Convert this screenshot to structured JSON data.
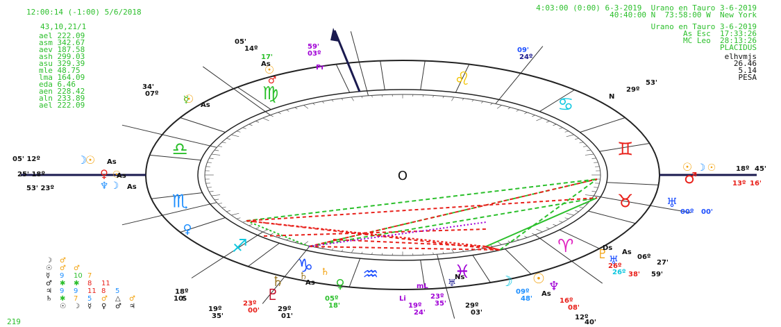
{
  "header": {
    "left": "12:00:14 (-1:00) 5/6/2018",
    "right_line1": "4:03:00 (0:00) 6-3-2019  Urano en Tauro 3-6-2019",
    "right_line2": "40:40:00 N  73:58:00 W  New York"
  },
  "left_panel": {
    "code": "43,10,21/1",
    "rows": [
      "ael 222.09",
      "asm 342.67",
      "aev 187.58",
      "ash 299.03",
      "asu 329.39",
      "mle 48.75",
      "lma 164.09",
      "eda 6.46",
      "aen 228.42",
      "aln 233.89",
      "ael 222.09"
    ]
  },
  "right_panel": {
    "title": "Urano en Tauro 3-6-2019",
    "asc": "As Esc  17:33:26",
    "mc": "MC Leo  28:13:26",
    "system": "PLACIDUS",
    "code": "elhvmjs",
    "val1": "26.46",
    "val2": "5.14",
    "val3": "PESA"
  },
  "footer": {
    "number": "219"
  },
  "center_symbol": "O",
  "colors": {
    "green": "#2bbf2b",
    "red": "#e8201a",
    "orange": "#f2a10c",
    "blue": "#1e8fff",
    "purple": "#a000d6",
    "cyan": "#10c8e0",
    "darkblue": "#1a1a8f"
  },
  "signs": [
    {
      "glyph": "♌",
      "color": "#f2c400"
    },
    {
      "glyph": "♋",
      "color": "#10c8e0"
    },
    {
      "glyph": "♊",
      "color": "#e8201a"
    },
    {
      "glyph": "♉",
      "color": "#e8201a"
    },
    {
      "glyph": "♈",
      "color": "#e020c0"
    },
    {
      "glyph": "♓",
      "color": "#a000d6"
    },
    {
      "glyph": "♒",
      "color": "#1e50ff"
    },
    {
      "glyph": "♑",
      "color": "#1e50ff"
    },
    {
      "glyph": "♐",
      "color": "#10c8e0"
    },
    {
      "glyph": "♏",
      "color": "#1e8fff"
    },
    {
      "glyph": "♎",
      "color": "#2bbf2b"
    },
    {
      "glyph": "♍",
      "color": "#2bbf2b"
    }
  ],
  "labels": [
    {
      "t": "05'",
      "c": "#111"
    },
    {
      "t": "14º",
      "c": "#111"
    },
    {
      "t": "17'",
      "c": "#2bbf2b"
    },
    {
      "t": "As",
      "c": "#111"
    },
    {
      "t": "59'",
      "c": "#a000d6"
    },
    {
      "t": "03º",
      "c": "#a000d6"
    },
    {
      "t": "Pr",
      "c": "#a000d6"
    },
    {
      "t": "09'",
      "c": "#1e50ff"
    },
    {
      "t": "24º",
      "c": "#1a1a8f"
    },
    {
      "t": "53'",
      "c": "#111"
    },
    {
      "t": "N",
      "c": "#111"
    },
    {
      "t": "29º",
      "c": "#111"
    },
    {
      "t": "34'",
      "c": "#111"
    },
    {
      "t": "07º",
      "c": "#111"
    },
    {
      "t": "As",
      "c": "#111"
    },
    {
      "t": "05' 12º",
      "c": "#111"
    },
    {
      "t": "25' 18º",
      "c": "#111"
    },
    {
      "t": "53' 23º",
      "c": "#111"
    },
    {
      "t": "As",
      "c": "#111"
    },
    {
      "t": "As",
      "c": "#111"
    },
    {
      "t": "As",
      "c": "#111"
    },
    {
      "t": "18º",
      "c": "#111"
    },
    {
      "t": "45'",
      "c": "#111"
    },
    {
      "t": "13º",
      "c": "#e8201a"
    },
    {
      "t": "16'",
      "c": "#e8201a"
    },
    {
      "t": "00º",
      "c": "#1e50ff"
    },
    {
      "t": "00'",
      "c": "#1e50ff"
    },
    {
      "t": "Ds",
      "c": "#111"
    },
    {
      "t": "As",
      "c": "#111"
    },
    {
      "t": "06º",
      "c": "#111"
    },
    {
      "t": "27'",
      "c": "#111"
    },
    {
      "t": "26º",
      "c": "#e8201a"
    },
    {
      "t": "38'",
      "c": "#e8201a"
    },
    {
      "t": "59'",
      "c": "#111"
    },
    {
      "t": "26º",
      "c": "#10c8e0"
    },
    {
      "t": "09º",
      "c": "#1e8fff"
    },
    {
      "t": "48'",
      "c": "#1e8fff"
    },
    {
      "t": "As",
      "c": "#111"
    },
    {
      "t": "16º",
      "c": "#e8201a"
    },
    {
      "t": "08'",
      "c": "#e8201a"
    },
    {
      "t": "12º",
      "c": "#111"
    },
    {
      "t": "40'",
      "c": "#111"
    },
    {
      "t": "19º",
      "c": "#a000d6"
    },
    {
      "t": "24'",
      "c": "#a000d6"
    },
    {
      "t": "23º",
      "c": "#a000d6"
    },
    {
      "t": "35'",
      "c": "#a000d6"
    },
    {
      "t": "29º",
      "c": "#111"
    },
    {
      "t": "03'",
      "c": "#111"
    },
    {
      "t": "mL",
      "c": "#a000d6"
    },
    {
      "t": "Li",
      "c": "#a000d6"
    },
    {
      "t": "05º",
      "c": "#2bbf2b"
    },
    {
      "t": "18'",
      "c": "#2bbf2b"
    },
    {
      "t": "As",
      "c": "#111"
    },
    {
      "t": "29º",
      "c": "#111"
    },
    {
      "t": "01'",
      "c": "#111"
    },
    {
      "t": "19º",
      "c": "#111"
    },
    {
      "t": "35'",
      "c": "#111"
    },
    {
      "t": "23º",
      "c": "#e8201a"
    },
    {
      "t": "00'",
      "c": "#e8201a"
    },
    {
      "t": "18º",
      "c": "#111"
    },
    {
      "t": "10'",
      "c": "#111"
    },
    {
      "t": "S",
      "c": "#111"
    },
    {
      "t": "Ns",
      "c": "#111"
    }
  ],
  "aspect_grid": {
    "rows": [
      [
        {
          "t": "☽",
          "c": "#111"
        },
        {
          "t": "♂",
          "c": "#f2a10c"
        }
      ],
      [
        {
          "t": "☉",
          "c": "#111"
        },
        {
          "t": "♂",
          "c": "#f2a10c"
        },
        {
          "t": "♂",
          "c": "#f2a10c"
        }
      ],
      [
        {
          "t": "☿",
          "c": "#111"
        },
        {
          "t": "9",
          "c": "#1e8fff"
        },
        {
          "t": "10",
          "c": "#2bbf2b"
        },
        {
          "t": "7",
          "c": "#f2a10c"
        }
      ],
      [
        {
          "t": "♂",
          "c": "#111"
        },
        {
          "t": "✱",
          "c": "#2bbf2b"
        },
        {
          "t": "✱",
          "c": "#2bbf2b"
        },
        {
          "t": "8",
          "c": "#e8201a"
        },
        {
          "t": "11",
          "c": "#e8201a"
        }
      ],
      [
        {
          "t": "♃",
          "c": "#111"
        },
        {
          "t": "9",
          "c": "#1e8fff"
        },
        {
          "t": "9",
          "c": "#1e8fff"
        },
        {
          "t": "11",
          "c": "#e8201a"
        },
        {
          "t": "8",
          "c": "#e8201a"
        },
        {
          "t": "5",
          "c": "#1e8fff"
        }
      ],
      [
        {
          "t": "♄",
          "c": "#111"
        },
        {
          "t": "✱",
          "c": "#2bbf2b"
        },
        {
          "t": "7",
          "c": "#f2a10c"
        },
        {
          "t": "5",
          "c": "#1e8fff"
        },
        {
          "t": "♂",
          "c": "#f2a10c"
        },
        {
          "t": "△",
          "c": "#111"
        },
        {
          "t": "♂",
          "c": "#f2a10c"
        }
      ],
      [
        {
          "t": "",
          "c": "#111"
        },
        {
          "t": "☉",
          "c": "#111"
        },
        {
          "t": "☽",
          "c": "#111"
        },
        {
          "t": "☿",
          "c": "#111"
        },
        {
          "t": "♀",
          "c": "#111"
        },
        {
          "t": "♂",
          "c": "#111"
        },
        {
          "t": "♃",
          "c": "#111"
        }
      ]
    ]
  }
}
